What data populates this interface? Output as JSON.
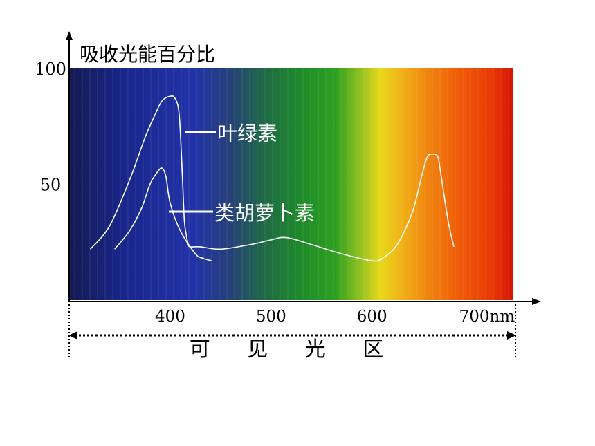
{
  "chart_data": {
    "type": "line",
    "ylabel": "吸收光能百分比",
    "xlabel": "可 见 光 区",
    "x_unit": "nm",
    "xlim": [
      300,
      740
    ],
    "ylim": [
      0,
      100
    ],
    "x_ticks": [
      {
        "value": 400,
        "label": "400"
      },
      {
        "value": 500,
        "label": "500"
      },
      {
        "value": 600,
        "label": "600"
      },
      {
        "value": 700,
        "label": "700nm"
      }
    ],
    "y_ticks": [
      {
        "value": 100,
        "label": "100"
      },
      {
        "value": 50,
        "label": "50"
      }
    ],
    "series": [
      {
        "name": "叶绿素",
        "x": [
          321,
          340,
          360,
          375,
          385,
          392,
          400,
          405,
          409,
          412,
          414,
          416,
          418,
          420,
          430,
          450,
          480,
          500,
          515,
          540,
          570,
          600,
          610,
          625,
          640,
          650,
          655,
          660,
          665,
          668,
          675,
          681
        ],
        "y": [
          22,
          32,
          52,
          70,
          80,
          86,
          88,
          87,
          80,
          55,
          35,
          28,
          24,
          23,
          23,
          22,
          24,
          26,
          27,
          24,
          20,
          17,
          18,
          24,
          38,
          55,
          62,
          63,
          62,
          55,
          35,
          23
        ]
      },
      {
        "name": "类胡萝卜素",
        "x": [
          345,
          360,
          372,
          380,
          387,
          392,
          396,
          400,
          410,
          425,
          433,
          441
        ],
        "y": [
          22,
          30,
          40,
          50,
          55,
          57,
          53,
          42,
          30,
          20,
          18,
          17
        ]
      }
    ]
  },
  "annotations": {
    "chlorophyll": "叶绿素",
    "carotenoid": "类胡萝卜素"
  },
  "colors": {
    "curve": "#ffffff",
    "axis": "#000000",
    "label_text": "#ffffff"
  }
}
